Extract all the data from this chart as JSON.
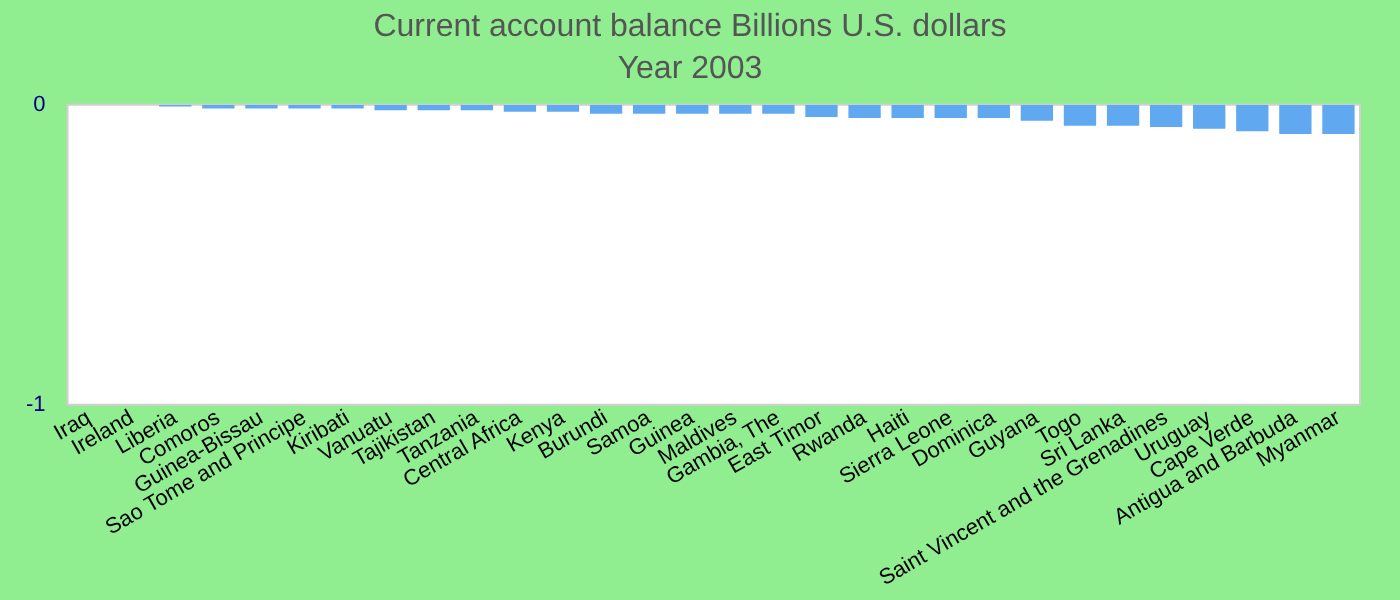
{
  "chart_data": {
    "type": "bar",
    "title": "Current account balance Billions U.S. dollars",
    "subtitle": "Year 2003",
    "categories": [
      "Iraq",
      "Ireland",
      "Liberia",
      "Comoros",
      "Guinea-Bissau",
      "Sao Tome and Principe",
      "Kiribati",
      "Vanuatu",
      "Tajikistan",
      "Tanzania",
      "Central Africa",
      "Kenya",
      "Burundi",
      "Samoa",
      "Guinea",
      "Maldives",
      "Gambia, The",
      "East Timor",
      "Rwanda",
      "Haiti",
      "Sierra Leone",
      "Dominica",
      "Guyana",
      "Togo",
      "Sri Lanka",
      "Saint Vincent and the Grenadines",
      "Uruguay",
      "Cape Verde",
      "Antigua and Barbuda",
      "Myanmar"
    ],
    "values": [
      0,
      0,
      -0.006,
      -0.012,
      -0.012,
      -0.012,
      -0.012,
      -0.018,
      -0.018,
      -0.018,
      -0.023,
      -0.023,
      -0.03,
      -0.03,
      -0.03,
      -0.03,
      -0.03,
      -0.041,
      -0.044,
      -0.044,
      -0.044,
      -0.044,
      -0.053,
      -0.07,
      -0.07,
      -0.074,
      -0.08,
      -0.088,
      -0.097,
      -0.097
    ],
    "color": "#60a8f0",
    "ylim": [
      -1,
      0
    ],
    "yticks": [
      -1,
      0
    ],
    "grid": false,
    "legend": false
  }
}
